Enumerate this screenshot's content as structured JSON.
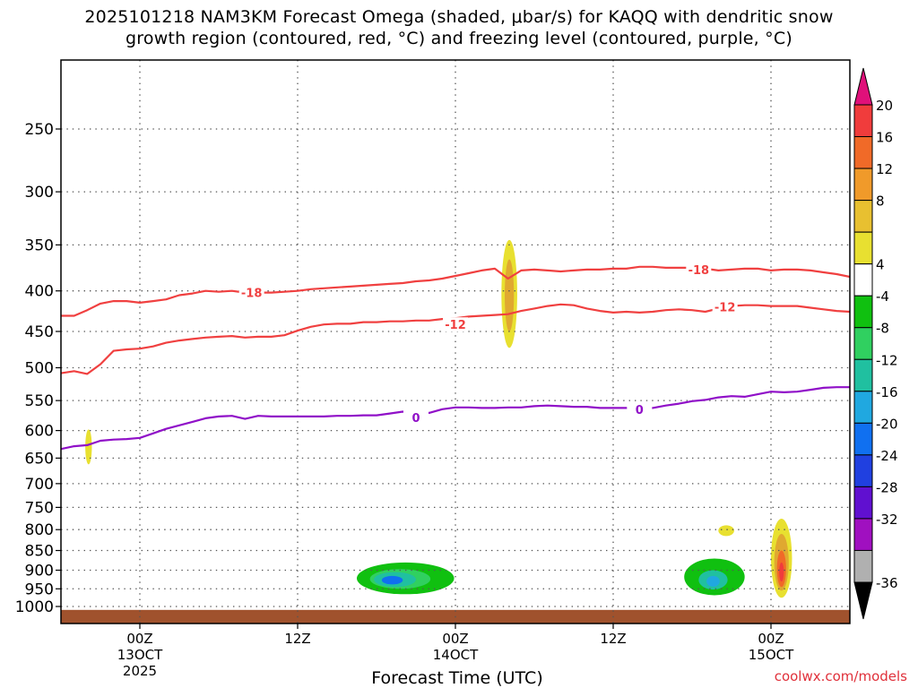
{
  "chart_data": {
    "type": "heatmap",
    "title_line1": "2025101218 NAM3KM Forecast Omega (shaded, μbar/s) for KAQQ with dendritic snow",
    "title_line2": "growth region (contoured, red, °C) and freezing level (contoured, purple, °C)",
    "xlabel": "Forecast Time (UTC)",
    "watermark": "coolwx.com/models",
    "x_axis": {
      "unit": "hours from 2025-10-12 18Z",
      "range": [
        0,
        60
      ],
      "ticks": [
        {
          "hour": 6,
          "label": "00Z",
          "sub": "13OCT",
          "sub2": "2025"
        },
        {
          "hour": 18,
          "label": "12Z",
          "sub": "",
          "sub2": ""
        },
        {
          "hour": 30,
          "label": "00Z",
          "sub": "14OCT",
          "sub2": ""
        },
        {
          "hour": 42,
          "label": "12Z",
          "sub": "",
          "sub2": ""
        },
        {
          "hour": 54,
          "label": "00Z",
          "sub": "15OCT",
          "sub2": ""
        }
      ]
    },
    "y_axis": {
      "unit": "hPa",
      "scale": "log",
      "range": [
        1030,
        200
      ],
      "ticks": [
        "250",
        "300",
        "350",
        "400",
        "450",
        "500",
        "550",
        "600",
        "650",
        "700",
        "750",
        "800",
        "850",
        "900",
        "950",
        "1000"
      ]
    },
    "colorbar": {
      "unit": "μbar/s",
      "labels": [
        "20",
        "16",
        "12",
        "8",
        "4",
        "-4",
        "-8",
        "-12",
        "-16",
        "-20",
        "-24",
        "-28",
        "-32",
        "-36"
      ],
      "colors": [
        "#e0107a",
        "#f03c3c",
        "#f06a28",
        "#f09a2a",
        "#e8c030",
        "#e8e030",
        "#ffffff",
        "#10c010",
        "#30d060",
        "#20c0a0",
        "#20a8e0",
        "#1070f0",
        "#2040e0",
        "#6010d0",
        "#a010c0",
        "#b0b0b0",
        "#000000"
      ]
    },
    "contours": [
      {
        "name": "dgz-minus-18",
        "label": "-18",
        "color": "#f04040",
        "label_points": [
          [
            14.5,
            402
          ],
          [
            48.5,
            376
          ]
        ],
        "points": [
          [
            0,
            430
          ],
          [
            1,
            430
          ],
          [
            2,
            423
          ],
          [
            3,
            415
          ],
          [
            4,
            412
          ],
          [
            5,
            412
          ],
          [
            6,
            414
          ],
          [
            7,
            412
          ],
          [
            8,
            410
          ],
          [
            9,
            405
          ],
          [
            10,
            403
          ],
          [
            11,
            400
          ],
          [
            12,
            401
          ],
          [
            13,
            400
          ],
          [
            14,
            402
          ],
          [
            15,
            402
          ],
          [
            16,
            402
          ],
          [
            17,
            401
          ],
          [
            18,
            400
          ],
          [
            19,
            398
          ],
          [
            20,
            397
          ],
          [
            21,
            396
          ],
          [
            22,
            395
          ],
          [
            23,
            394
          ],
          [
            24,
            393
          ],
          [
            25,
            392
          ],
          [
            26,
            391
          ],
          [
            27,
            389
          ],
          [
            28,
            388
          ],
          [
            29,
            386
          ],
          [
            30,
            383
          ],
          [
            31,
            380
          ],
          [
            32,
            377
          ],
          [
            33,
            375
          ],
          [
            34,
            386
          ],
          [
            35,
            377
          ],
          [
            36,
            376
          ],
          [
            37,
            377
          ],
          [
            38,
            378
          ],
          [
            39,
            377
          ],
          [
            40,
            376
          ],
          [
            41,
            376
          ],
          [
            42,
            375
          ],
          [
            43,
            375
          ],
          [
            44,
            373
          ],
          [
            45,
            373
          ],
          [
            46,
            374
          ],
          [
            47,
            374
          ],
          [
            48,
            374
          ],
          [
            49,
            375
          ],
          [
            50,
            377
          ],
          [
            51,
            376
          ],
          [
            52,
            375
          ],
          [
            53,
            375
          ],
          [
            54,
            377
          ],
          [
            55,
            376
          ],
          [
            56,
            376
          ],
          [
            57,
            377
          ],
          [
            58,
            379
          ],
          [
            59,
            381
          ],
          [
            60,
            384
          ]
        ]
      },
      {
        "name": "dgz-minus-12",
        "label": "-12",
        "color": "#f04040",
        "label_points": [
          [
            30,
            441
          ],
          [
            50.5,
            419
          ]
        ],
        "points": [
          [
            0,
            508
          ],
          [
            1,
            505
          ],
          [
            2,
            509
          ],
          [
            3,
            495
          ],
          [
            4,
            476
          ],
          [
            5,
            474
          ],
          [
            6,
            473
          ],
          [
            7,
            470
          ],
          [
            8,
            465
          ],
          [
            9,
            462
          ],
          [
            10,
            460
          ],
          [
            11,
            458
          ],
          [
            12,
            457
          ],
          [
            13,
            456
          ],
          [
            14,
            458
          ],
          [
            15,
            457
          ],
          [
            16,
            457
          ],
          [
            17,
            455
          ],
          [
            18,
            449
          ],
          [
            19,
            444
          ],
          [
            20,
            441
          ],
          [
            21,
            440
          ],
          [
            22,
            440
          ],
          [
            23,
            438
          ],
          [
            24,
            438
          ],
          [
            25,
            437
          ],
          [
            26,
            437
          ],
          [
            27,
            436
          ],
          [
            28,
            436
          ],
          [
            29,
            434
          ],
          [
            30,
            433
          ],
          [
            31,
            431
          ],
          [
            32,
            430
          ],
          [
            33,
            429
          ],
          [
            34,
            428
          ],
          [
            35,
            424
          ],
          [
            36,
            421
          ],
          [
            37,
            418
          ],
          [
            38,
            416
          ],
          [
            39,
            417
          ],
          [
            40,
            421
          ],
          [
            41,
            424
          ],
          [
            42,
            426
          ],
          [
            43,
            425
          ],
          [
            44,
            426
          ],
          [
            45,
            425
          ],
          [
            46,
            423
          ],
          [
            47,
            422
          ],
          [
            48,
            423
          ],
          [
            49,
            425
          ],
          [
            50,
            421
          ],
          [
            51,
            418
          ],
          [
            52,
            417
          ],
          [
            53,
            417
          ],
          [
            54,
            418
          ],
          [
            55,
            418
          ],
          [
            56,
            418
          ],
          [
            57,
            420
          ],
          [
            58,
            422
          ],
          [
            59,
            424
          ],
          [
            60,
            425
          ]
        ]
      },
      {
        "name": "freezing-level-0",
        "label": "0",
        "color": "#9010c8",
        "label_points": [
          [
            27,
            578
          ],
          [
            44,
            564
          ]
        ],
        "points": [
          [
            0,
            633
          ],
          [
            1,
            628
          ],
          [
            2,
            626
          ],
          [
            3,
            618
          ],
          [
            4,
            616
          ],
          [
            5,
            615
          ],
          [
            6,
            613
          ],
          [
            7,
            605
          ],
          [
            8,
            597
          ],
          [
            9,
            591
          ],
          [
            10,
            585
          ],
          [
            11,
            579
          ],
          [
            12,
            576
          ],
          [
            13,
            575
          ],
          [
            14,
            580
          ],
          [
            15,
            575
          ],
          [
            16,
            576
          ],
          [
            17,
            576
          ],
          [
            18,
            576
          ],
          [
            19,
            576
          ],
          [
            20,
            576
          ],
          [
            21,
            575
          ],
          [
            22,
            575
          ],
          [
            23,
            574
          ],
          [
            24,
            574
          ],
          [
            25,
            571
          ],
          [
            26,
            568
          ],
          [
            27,
            570
          ],
          [
            28,
            570
          ],
          [
            29,
            564
          ],
          [
            30,
            561
          ],
          [
            31,
            561
          ],
          [
            32,
            562
          ],
          [
            33,
            562
          ],
          [
            34,
            561
          ],
          [
            35,
            561
          ],
          [
            36,
            559
          ],
          [
            37,
            558
          ],
          [
            38,
            559
          ],
          [
            39,
            560
          ],
          [
            40,
            560
          ],
          [
            41,
            562
          ],
          [
            42,
            562
          ],
          [
            43,
            562
          ],
          [
            44,
            564
          ],
          [
            45,
            562
          ],
          [
            46,
            558
          ],
          [
            47,
            555
          ],
          [
            48,
            551
          ],
          [
            49,
            549
          ],
          [
            50,
            545
          ],
          [
            51,
            543
          ],
          [
            52,
            544
          ],
          [
            53,
            540
          ],
          [
            54,
            536
          ],
          [
            55,
            537
          ],
          [
            56,
            536
          ],
          [
            57,
            533
          ],
          [
            58,
            530
          ],
          [
            59,
            529
          ],
          [
            60,
            529
          ]
        ]
      }
    ],
    "shaded_regions": [
      {
        "name": "ascent-early",
        "omega": 4,
        "color": "#e8e030",
        "center": [
          2.1,
          618
        ],
        "half_width_h": 0.25,
        "pressure_span": [
          598,
          662
        ]
      },
      {
        "name": "ascent-mid-upper-outer",
        "omega": 4,
        "color": "#e8e030",
        "center": [
          34.1,
          400
        ],
        "half_width_h": 0.6,
        "pressure_span": [
          345,
          472
        ]
      },
      {
        "name": "ascent-mid-upper-core",
        "omega": 8,
        "color": "#e0a830",
        "center": [
          34.1,
          405
        ],
        "half_width_h": 0.35,
        "pressure_span": [
          365,
          450
        ]
      },
      {
        "name": "descent-low-1-outer",
        "omega": -4,
        "color": "#10c010",
        "center": [
          26.2,
          920
        ],
        "half_width_h": 3.7,
        "pressure_span": [
          880,
          965
        ]
      },
      {
        "name": "descent-low-1-inner",
        "omega": -8,
        "color": "#30d060",
        "center": [
          25.8,
          922
        ],
        "half_width_h": 2.3,
        "pressure_span": [
          897,
          950
        ]
      },
      {
        "name": "descent-low-1-core",
        "omega": -12,
        "color": "#20c0a0",
        "center": [
          25.4,
          925
        ],
        "half_width_h": 1.6,
        "pressure_span": [
          905,
          945
        ]
      },
      {
        "name": "descent-low-1-max",
        "omega": -20,
        "color": "#1070f0",
        "center": [
          25.2,
          925
        ],
        "half_width_h": 0.8,
        "pressure_span": [
          915,
          938
        ]
      },
      {
        "name": "descent-low-2-outer",
        "omega": -4,
        "color": "#10c010",
        "center": [
          49.7,
          920
        ],
        "half_width_h": 2.3,
        "pressure_span": [
          870,
          968
        ]
      },
      {
        "name": "descent-low-2-core",
        "omega": -12,
        "color": "#20c0a0",
        "center": [
          49.6,
          925
        ],
        "half_width_h": 1.1,
        "pressure_span": [
          900,
          952
        ]
      },
      {
        "name": "descent-low-2-max",
        "omega": -16,
        "color": "#20a8e0",
        "center": [
          49.6,
          928
        ],
        "half_width_h": 0.5,
        "pressure_span": [
          915,
          944
        ]
      },
      {
        "name": "ascent-small",
        "omega": 4,
        "color": "#e8e030",
        "center": [
          50.6,
          802
        ],
        "half_width_h": 0.6,
        "pressure_span": [
          790,
          815
        ]
      },
      {
        "name": "ascent-late-outer",
        "omega": 4,
        "color": "#e8e030",
        "center": [
          54.8,
          885
        ],
        "half_width_h": 0.8,
        "pressure_span": [
          775,
          975
        ]
      },
      {
        "name": "ascent-late-mid",
        "omega": 8,
        "color": "#e0a830",
        "center": [
          54.8,
          890
        ],
        "half_width_h": 0.55,
        "pressure_span": [
          810,
          955
        ]
      },
      {
        "name": "ascent-late-inner",
        "omega": 12,
        "color": "#f06a28",
        "center": [
          54.8,
          900
        ],
        "half_width_h": 0.35,
        "pressure_span": [
          850,
          945
        ]
      },
      {
        "name": "ascent-late-core",
        "omega": 16,
        "color": "#f03c3c",
        "center": [
          54.8,
          905
        ],
        "half_width_h": 0.18,
        "pressure_span": [
          880,
          930
        ]
      }
    ],
    "ground": {
      "color": "#a0522d",
      "surface_pressure": 1010
    }
  }
}
